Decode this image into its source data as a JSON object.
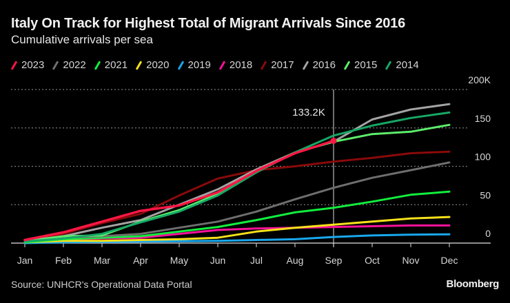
{
  "header": {
    "title": "Italy On Track for Highest Total of Migrant Arrivals Since 2016",
    "subtitle": "Cumulative arrivals per sea"
  },
  "footer": {
    "source": "Source: UNHCR's Operational Data Portal",
    "brand": "Bloomberg"
  },
  "chart_data": {
    "type": "line",
    "title": "Italy On Track for Highest Total of Migrant Arrivals Since 2016",
    "subtitle": "Cumulative arrivals per sea",
    "xlabel": "",
    "ylabel": "",
    "x": [
      "Jan",
      "Feb",
      "Mar",
      "Apr",
      "May",
      "Jun",
      "Jul",
      "Aug",
      "Sep",
      "Oct",
      "Nov",
      "Dec"
    ],
    "ylim": [
      0,
      200000
    ],
    "yticks": [
      0,
      50000,
      100000,
      150000,
      200000
    ],
    "ytick_labels": [
      "0",
      "50",
      "100",
      "150",
      "200K"
    ],
    "grid": true,
    "legend_position": "top-left",
    "annotation": {
      "x": "Sep",
      "series": "2023",
      "value": 133200,
      "label": "133.2K"
    },
    "series": [
      {
        "name": "2014",
        "color": "#16a865",
        "values": [
          2000,
          6000,
          12000,
          27000,
          41000,
          62000,
          92000,
          118000,
          140000,
          153000,
          163000,
          170000
        ]
      },
      {
        "name": "2015",
        "color": "#5ded6c",
        "values": [
          2000,
          9000,
          10000,
          28000,
          43000,
          64000,
          93000,
          118000,
          132000,
          142000,
          145000,
          154000
        ]
      },
      {
        "name": "2016",
        "color": "#a3a3a3",
        "values": [
          3000,
          9000,
          20000,
          30000,
          50000,
          70000,
          96000,
          118000,
          132000,
          161000,
          174000,
          181000
        ]
      },
      {
        "name": "2017",
        "color": "#8a0a0a",
        "values": [
          3000,
          12000,
          26000,
          38000,
          62000,
          84000,
          95000,
          100000,
          106000,
          111000,
          117000,
          119000
        ]
      },
      {
        "name": "2018",
        "color": "#f7119a",
        "values": [
          2000,
          5000,
          6000,
          7000,
          12000,
          17000,
          19000,
          20000,
          21000,
          22000,
          23000,
          23000
        ]
      },
      {
        "name": "2019",
        "color": "#19a8ee",
        "values": [
          0,
          1000,
          1500,
          2000,
          2500,
          3000,
          4000,
          5000,
          8000,
          10000,
          11000,
          11500
        ]
      },
      {
        "name": "2020",
        "color": "#f7e11a",
        "values": [
          1000,
          3000,
          3000,
          4000,
          5000,
          7000,
          15000,
          20000,
          24000,
          28000,
          32000,
          34000
        ]
      },
      {
        "name": "2021",
        "color": "#12ee3e",
        "values": [
          1000,
          5000,
          7000,
          9000,
          15000,
          21000,
          30000,
          40000,
          46000,
          54000,
          63000,
          67000
        ]
      },
      {
        "name": "2022",
        "color": "#6e6e6e",
        "values": [
          2000,
          7000,
          9000,
          12000,
          20000,
          28000,
          41000,
          57000,
          72000,
          85000,
          95000,
          105000
        ]
      },
      {
        "name": "2023",
        "color": "#ff1744",
        "values": [
          4000,
          14000,
          28000,
          42000,
          49000,
          66000,
          94000,
          117000,
          133200
        ]
      }
    ],
    "legend_order": [
      "2023",
      "2022",
      "2021",
      "2020",
      "2019",
      "2018",
      "2017",
      "2016",
      "2015",
      "2014"
    ]
  }
}
